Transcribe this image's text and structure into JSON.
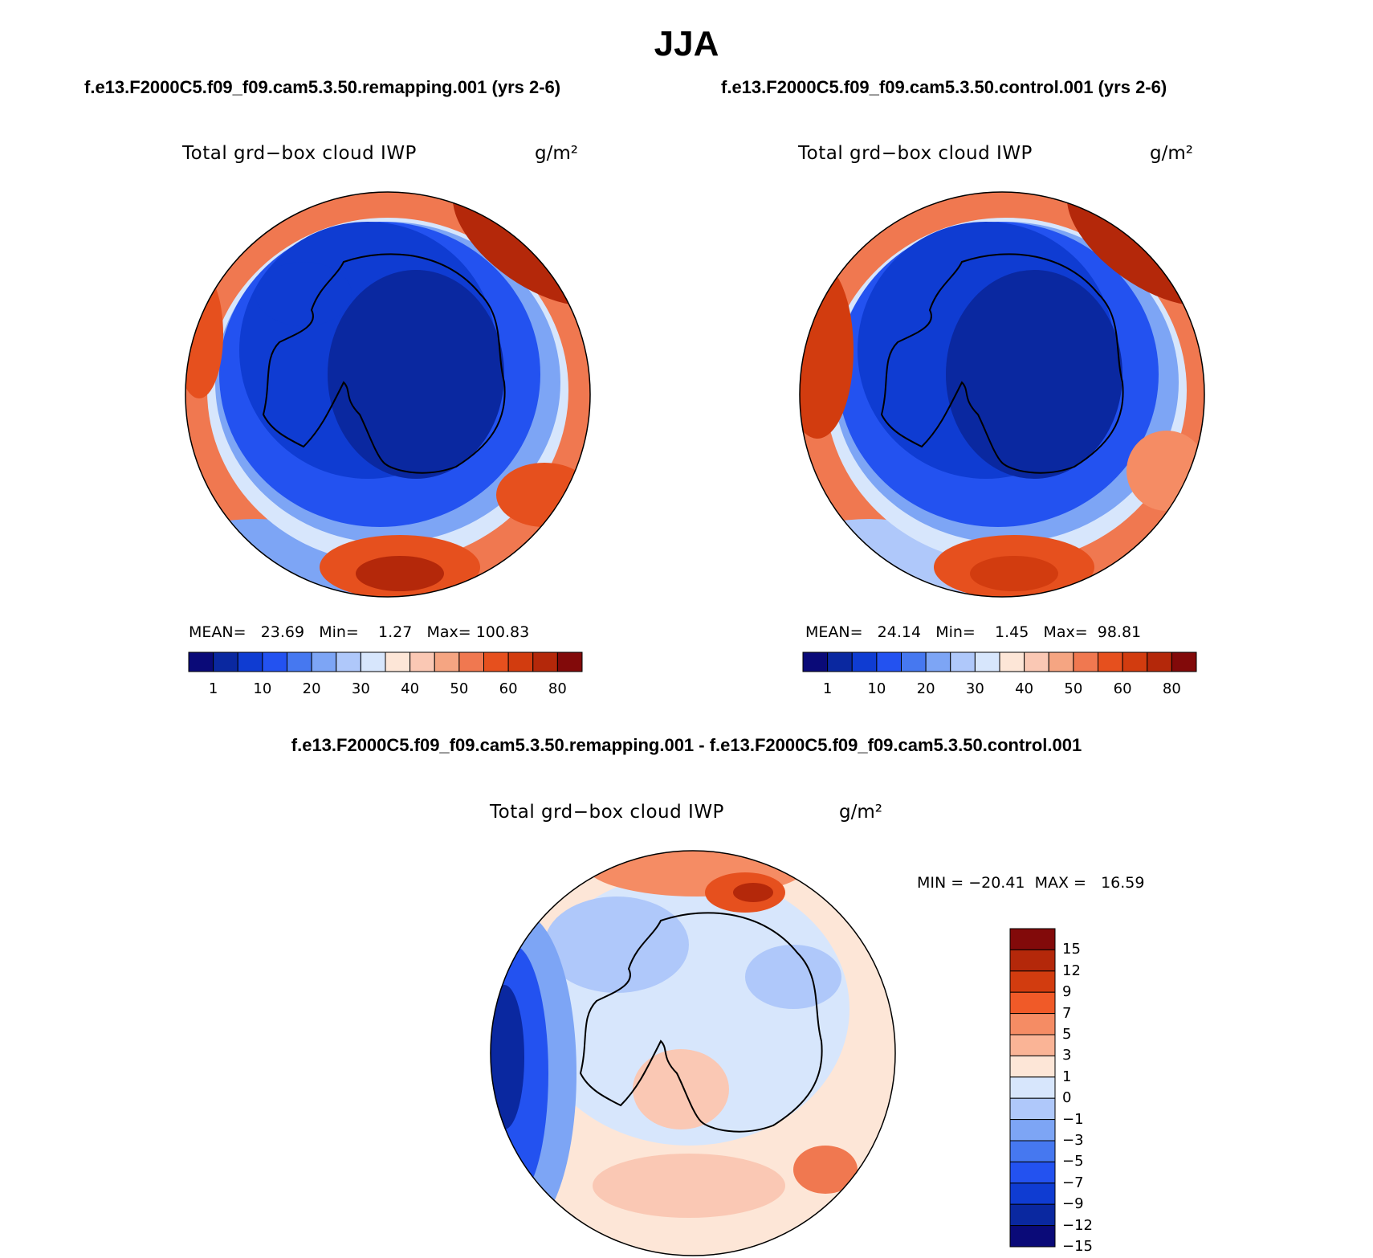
{
  "title": "JJA",
  "panels": [
    {
      "case": "f.e13.F2000C5.f09_f09.cam5.3.50.remapping.001 (yrs 2-6)",
      "variable": "Total grd−box cloud IWP",
      "unit": "g/m²",
      "stats": {
        "mean_label": "MEAN=",
        "mean": "23.69",
        "min_label": "Min=",
        "min": "1.27",
        "max_label": "Max=",
        "max": "100.83"
      },
      "colorbar_ticks": [
        "1",
        "10",
        "20",
        "30",
        "40",
        "50",
        "60",
        "80"
      ]
    },
    {
      "case": "f.e13.F2000C5.f09_f09.cam5.3.50.control.001 (yrs 2-6)",
      "variable": "Total grd−box cloud IWP",
      "unit": "g/m²",
      "stats": {
        "mean_label": "MEAN=",
        "mean": "24.14",
        "min_label": "Min=",
        "min": "1.45",
        "max_label": "Max=",
        "max": "98.81"
      },
      "colorbar_ticks": [
        "1",
        "10",
        "20",
        "30",
        "40",
        "50",
        "60",
        "80"
      ]
    }
  ],
  "difference": {
    "title": "f.e13.F2000C5.f09_f09.cam5.3.50.remapping.001 - f.e13.F2000C5.f09_f09.cam5.3.50.control.001",
    "variable": "Total grd−box cloud IWP",
    "unit": "g/m²",
    "minmax": "MIN = −20.41  MAX =   16.59",
    "colorbar_ticks": [
      "15",
      "12",
      "9",
      "7",
      "5",
      "3",
      "1",
      "0",
      "−1",
      "−3",
      "−5",
      "−7",
      "−9",
      "−12",
      "−15"
    ]
  },
  "colors": {
    "abs_scale": [
      "#0a0a78",
      "#0a28a0",
      "#0f3cd2",
      "#2352f0",
      "#4678f0",
      "#7da5f5",
      "#afc8fa",
      "#d7e6fc",
      "#fde6d7",
      "#fac8b4",
      "#f5a582",
      "#f07850",
      "#e6501e",
      "#d23c0f",
      "#b4280a",
      "#820a0a"
    ],
    "diff_scale": [
      "#820a0a",
      "#b4280a",
      "#d23c0f",
      "#f05a28",
      "#f58c64",
      "#fab496",
      "#fde6d7",
      "#d7e6fc",
      "#afc8fa",
      "#7da5f5",
      "#4678f0",
      "#2352f0",
      "#0f3cd2",
      "#0a28a0",
      "#0a0a78"
    ]
  }
}
